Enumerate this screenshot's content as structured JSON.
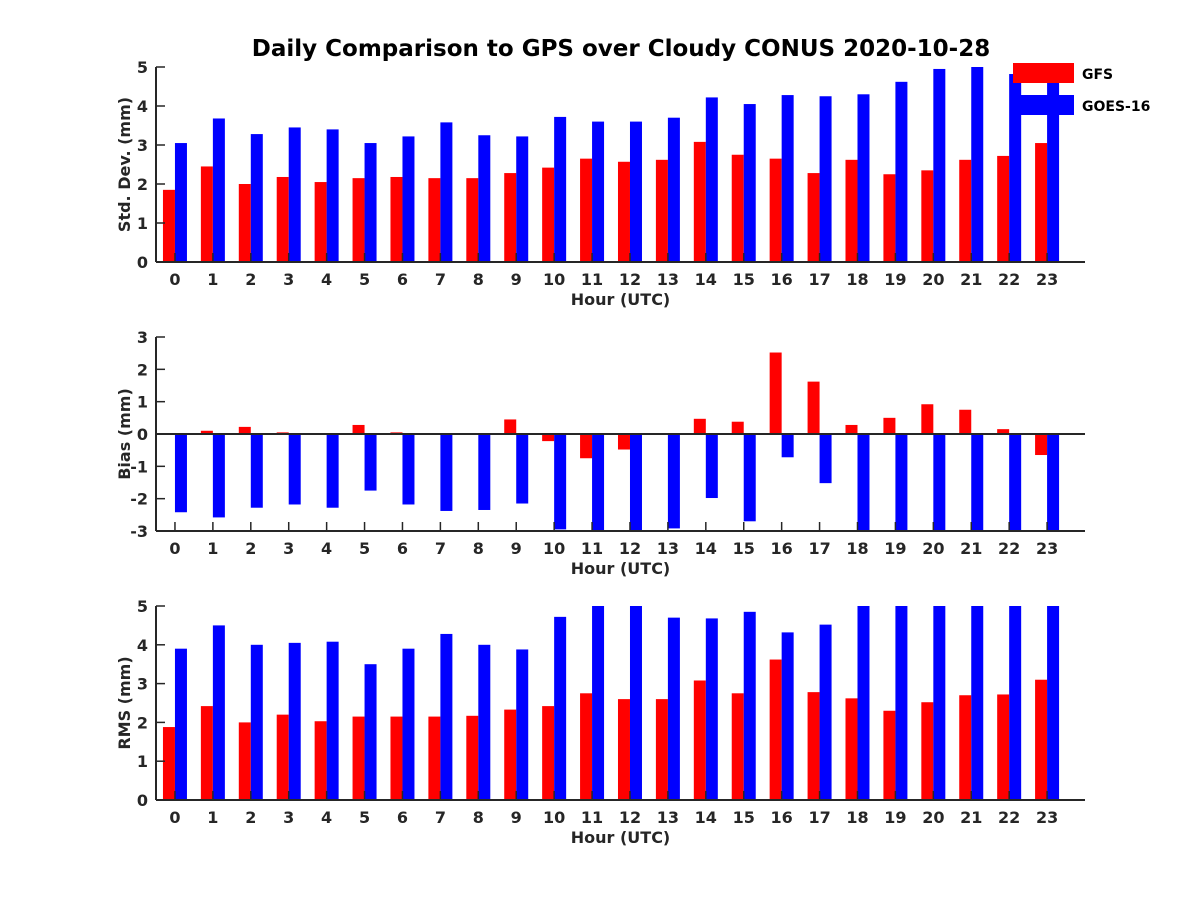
{
  "title": "Daily Comparison to GPS over Cloudy CONUS 2020-10-28",
  "legend": [
    {
      "label": "GFS",
      "color": "#ff0000"
    },
    {
      "label": "GOES-16",
      "color": "#0000ff"
    }
  ],
  "colors": {
    "axis": "#262626",
    "gfs": "#ff0000",
    "goes": "#0000ff"
  },
  "chart_data": [
    {
      "type": "bar",
      "ylabel": "Std. Dev. (mm)",
      "xlabel": "Hour (UTC)",
      "ylim": [
        0,
        5
      ],
      "yticks": [
        0,
        1,
        2,
        3,
        4,
        5
      ],
      "categories": [
        "0",
        "1",
        "2",
        "3",
        "4",
        "5",
        "6",
        "7",
        "8",
        "9",
        "10",
        "11",
        "12",
        "13",
        "14",
        "15",
        "16",
        "17",
        "18",
        "19",
        "20",
        "21",
        "22",
        "23"
      ],
      "series": [
        {
          "name": "GFS",
          "values": [
            1.85,
            2.45,
            2.0,
            2.18,
            2.05,
            2.15,
            2.18,
            2.15,
            2.15,
            2.28,
            2.42,
            2.65,
            2.57,
            2.62,
            3.08,
            2.75,
            2.65,
            2.28,
            2.62,
            2.25,
            2.35,
            2.62,
            2.72,
            3.05
          ]
        },
        {
          "name": "GOES-16",
          "values": [
            3.05,
            3.68,
            3.28,
            3.45,
            3.4,
            3.05,
            3.22,
            3.58,
            3.25,
            3.22,
            3.72,
            3.6,
            3.6,
            3.7,
            4.22,
            4.05,
            4.28,
            4.25,
            4.3,
            4.62,
            4.95,
            5.0,
            4.82,
            4.72
          ]
        }
      ]
    },
    {
      "type": "bar",
      "ylabel": "Bias (mm)",
      "xlabel": "Hour (UTC)",
      "ylim": [
        -3,
        3
      ],
      "yticks": [
        -3,
        -2,
        -1,
        0,
        1,
        2,
        3
      ],
      "zero_line": true,
      "categories": [
        "0",
        "1",
        "2",
        "3",
        "4",
        "5",
        "6",
        "7",
        "8",
        "9",
        "10",
        "11",
        "12",
        "13",
        "14",
        "15",
        "16",
        "17",
        "18",
        "19",
        "20",
        "21",
        "22",
        "23"
      ],
      "series": [
        {
          "name": "GFS",
          "values": [
            0.0,
            0.1,
            0.22,
            0.05,
            0.0,
            0.28,
            0.05,
            0.0,
            0.0,
            0.45,
            -0.22,
            -0.75,
            -0.48,
            0.0,
            0.47,
            0.38,
            2.52,
            1.62,
            0.28,
            0.5,
            0.92,
            0.75,
            0.15,
            -0.65
          ]
        },
        {
          "name": "GOES-16",
          "values": [
            -2.42,
            -2.58,
            -2.28,
            -2.18,
            -2.28,
            -1.75,
            -2.18,
            -2.38,
            -2.35,
            -2.15,
            -2.95,
            -3.0,
            -3.0,
            -2.92,
            -1.98,
            -2.7,
            -0.72,
            -1.52,
            -3.0,
            -3.0,
            -3.0,
            -3.0,
            -3.0,
            -3.0
          ]
        }
      ]
    },
    {
      "type": "bar",
      "ylabel": "RMS (mm)",
      "xlabel": "Hour (UTC)",
      "ylim": [
        0,
        5
      ],
      "yticks": [
        0,
        1,
        2,
        3,
        4,
        5
      ],
      "categories": [
        "0",
        "1",
        "2",
        "3",
        "4",
        "5",
        "6",
        "7",
        "8",
        "9",
        "10",
        "11",
        "12",
        "13",
        "14",
        "15",
        "16",
        "17",
        "18",
        "19",
        "20",
        "21",
        "22",
        "23"
      ],
      "series": [
        {
          "name": "GFS",
          "values": [
            1.88,
            2.42,
            2.0,
            2.2,
            2.03,
            2.15,
            2.15,
            2.15,
            2.17,
            2.33,
            2.42,
            2.75,
            2.6,
            2.6,
            3.08,
            2.75,
            3.62,
            2.78,
            2.62,
            2.3,
            2.52,
            2.7,
            2.72,
            3.1
          ]
        },
        {
          "name": "GOES-16",
          "values": [
            3.9,
            4.5,
            4.0,
            4.05,
            4.08,
            3.5,
            3.9,
            4.28,
            4.0,
            3.88,
            4.72,
            5.0,
            5.0,
            4.7,
            4.68,
            4.85,
            4.32,
            4.52,
            5.0,
            5.0,
            5.0,
            5.0,
            5.0,
            5.0
          ]
        }
      ]
    }
  ]
}
